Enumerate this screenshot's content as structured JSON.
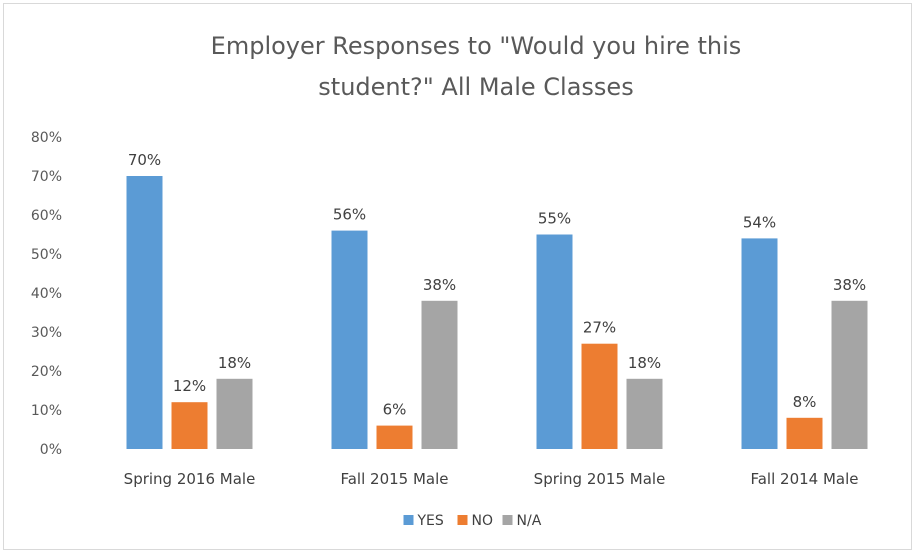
{
  "chart_data": {
    "type": "bar",
    "title_lines": [
      "Employer Responses to \"Would you hire this",
      "student?\" All Male Classes"
    ],
    "categories": [
      "Spring 2016 Male",
      "Fall 2015 Male",
      "Spring 2015 Male",
      "Fall 2014 Male"
    ],
    "series": [
      {
        "name": "YES",
        "color": "#5b9bd5",
        "values": [
          0.7,
          0.56,
          0.55,
          0.54
        ],
        "labels": [
          "70%",
          "56%",
          "55%",
          "54%"
        ]
      },
      {
        "name": "NO",
        "color": "#ed7d31",
        "values": [
          0.12,
          0.06,
          0.27,
          0.08
        ],
        "labels": [
          "12%",
          "6%",
          "27%",
          "8%"
        ]
      },
      {
        "name": "N/A",
        "color": "#a5a5a5",
        "values": [
          0.18,
          0.38,
          0.18,
          0.38
        ],
        "labels": [
          "18%",
          "38%",
          "18%",
          "38%"
        ]
      }
    ],
    "ylim": [
      0,
      0.8
    ],
    "yticks": [
      "0%",
      "10%",
      "20%",
      "30%",
      "40%",
      "50%",
      "60%",
      "70%",
      "80%"
    ],
    "legend_position": "bottom",
    "grid": false
  }
}
